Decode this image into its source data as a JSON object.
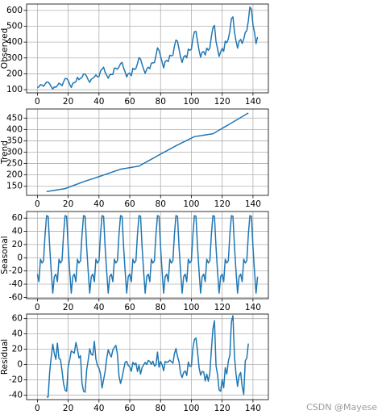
{
  "chart_data": {
    "type": "line",
    "color": "#1f77b4",
    "grid": true,
    "watermark": "CSDN @Mayese",
    "x": [
      0,
      1,
      2,
      3,
      4,
      5,
      6,
      7,
      8,
      9,
      10,
      11,
      12,
      13,
      14,
      15,
      16,
      17,
      18,
      19,
      20,
      21,
      22,
      23,
      24,
      25,
      26,
      27,
      28,
      29,
      30,
      31,
      32,
      33,
      34,
      35,
      36,
      37,
      38,
      39,
      40,
      41,
      42,
      43,
      44,
      45,
      46,
      47,
      48,
      49,
      50,
      51,
      52,
      53,
      54,
      55,
      56,
      57,
      58,
      59,
      60,
      61,
      62,
      63,
      64,
      65,
      66,
      67,
      68,
      69,
      70,
      71,
      72,
      73,
      74,
      75,
      76,
      77,
      78,
      79,
      80,
      81,
      82,
      83,
      84,
      85,
      86,
      87,
      88,
      89,
      90,
      91,
      92,
      93,
      94,
      95,
      96,
      97,
      98,
      99,
      100,
      101,
      102,
      103,
      104,
      105,
      106,
      107,
      108,
      109,
      110,
      111,
      112,
      113,
      114,
      115,
      116,
      117,
      118,
      119,
      120,
      121,
      122,
      123,
      124,
      125,
      126,
      127,
      128,
      129,
      130,
      131,
      132,
      133,
      134,
      135,
      136,
      137,
      138,
      139,
      140,
      141,
      142,
      143
    ],
    "xlim": [
      -7,
      150
    ],
    "xticks": [
      0,
      20,
      40,
      60,
      80,
      100,
      120,
      140
    ],
    "panels": [
      {
        "ylabel": "Observed",
        "ylim": [
          80,
          640
        ],
        "yticks": [
          100,
          200,
          300,
          400,
          500,
          600
        ],
        "values": [
          112,
          118,
          132,
          129,
          121,
          135,
          148,
          148,
          136,
          119,
          104,
          118,
          115,
          126,
          141,
          135,
          125,
          149,
          170,
          170,
          158,
          133,
          114,
          140,
          145,
          150,
          178,
          163,
          172,
          178,
          199,
          199,
          184,
          162,
          146,
          166,
          171,
          180,
          193,
          181,
          183,
          218,
          230,
          242,
          209,
          191,
          172,
          194,
          196,
          196,
          236,
          235,
          229,
          243,
          264,
          272,
          237,
          211,
          180,
          201,
          204,
          188,
          235,
          227,
          234,
          264,
          302,
          293,
          259,
          229,
          203,
          229,
          242,
          233,
          267,
          269,
          270,
          315,
          364,
          347,
          312,
          274,
          237,
          278,
          284,
          277,
          317,
          313,
          318,
          374,
          413,
          405,
          355,
          306,
          271,
          306,
          315,
          301,
          356,
          348,
          355,
          422,
          465,
          467,
          404,
          347,
          305,
          336,
          340,
          318,
          362,
          348,
          363,
          435,
          491,
          505,
          404,
          359,
          310,
          337,
          360,
          342,
          406,
          396,
          420,
          472,
          548,
          559,
          463,
          407,
          362,
          405,
          417,
          391,
          419,
          461,
          472,
          535,
          622,
          606,
          508,
          461,
          390,
          432
        ]
      },
      {
        "ylabel": "Trend",
        "ylim": [
          110,
          490
        ],
        "yticks": [
          150,
          200,
          250,
          300,
          350,
          400,
          450
        ],
        "values": [
          null,
          null,
          null,
          null,
          null,
          null,
          126.7,
          127.8,
          128.9,
          129.9,
          131.0,
          132.1,
          133.2,
          134.3,
          135.4,
          136.5,
          137.5,
          138.6,
          139.7,
          142.2,
          144.8,
          147.3,
          149.9,
          152.4,
          154.9,
          157.5,
          160.0,
          162.6,
          165.1,
          167.6,
          170.2,
          172.4,
          174.7,
          176.9,
          179.1,
          181.4,
          183.6,
          185.8,
          188.0,
          190.3,
          192.5,
          194.7,
          197.0,
          199.3,
          201.7,
          204.0,
          206.3,
          208.7,
          211.0,
          213.3,
          215.6,
          218.0,
          220.3,
          222.6,
          225.0,
          226.2,
          227.3,
          228.5,
          229.6,
          230.8,
          232.0,
          233.1,
          234.3,
          235.4,
          236.6,
          237.8,
          238.9,
          242.7,
          246.4,
          250.2,
          253.9,
          257.7,
          261.5,
          265.2,
          269.0,
          272.7,
          276.5,
          280.3,
          284.0,
          287.7,
          291.4,
          295.1,
          298.8,
          302.5,
          306.1,
          309.8,
          313.5,
          317.2,
          320.9,
          324.6,
          328.3,
          331.6,
          335.0,
          338.3,
          341.7,
          345.0,
          348.3,
          351.7,
          355.0,
          358.4,
          361.7,
          365.1,
          368.4,
          369.5,
          370.5,
          371.6,
          372.6,
          373.7,
          374.7,
          375.8,
          376.8,
          377.9,
          378.9,
          380.0,
          381.0,
          384.9,
          388.9,
          392.8,
          396.8,
          400.7,
          404.6,
          408.6,
          412.5,
          416.5,
          420.4,
          424.3,
          428.3,
          432.3,
          436.3,
          440.3,
          444.3,
          448.3,
          452.2,
          456.2,
          460.2,
          464.2,
          468.2,
          472.2,
          null,
          null,
          null,
          null,
          null,
          null
        ]
      },
      {
        "ylabel": "Seasonal",
        "ylim": [
          -62,
          70
        ],
        "yticks": [
          -60,
          -40,
          -20,
          0,
          20,
          40,
          60
        ],
        "values": [
          -24.8,
          -36.2,
          -2.2,
          -8.0,
          -4.5,
          35.4,
          63.8,
          62.8,
          16.5,
          -20.6,
          -53.6,
          -28.6,
          -24.8,
          -36.2,
          -2.2,
          -8.0,
          -4.5,
          35.4,
          63.8,
          62.8,
          16.5,
          -20.6,
          -53.6,
          -28.6,
          -24.8,
          -36.2,
          -2.2,
          -8.0,
          -4.5,
          35.4,
          63.8,
          62.8,
          16.5,
          -20.6,
          -53.6,
          -28.6,
          -24.8,
          -36.2,
          -2.2,
          -8.0,
          -4.5,
          35.4,
          63.8,
          62.8,
          16.5,
          -20.6,
          -53.6,
          -28.6,
          -24.8,
          -36.2,
          -2.2,
          -8.0,
          -4.5,
          35.4,
          63.8,
          62.8,
          16.5,
          -20.6,
          -53.6,
          -28.6,
          -24.8,
          -36.2,
          -2.2,
          -8.0,
          -4.5,
          35.4,
          63.8,
          62.8,
          16.5,
          -20.6,
          -53.6,
          -28.6,
          -24.8,
          -36.2,
          -2.2,
          -8.0,
          -4.5,
          35.4,
          63.8,
          62.8,
          16.5,
          -20.6,
          -53.6,
          -28.6,
          -24.8,
          -36.2,
          -2.2,
          -8.0,
          -4.5,
          35.4,
          63.8,
          62.8,
          16.5,
          -20.6,
          -53.6,
          -28.6,
          -24.8,
          -36.2,
          -2.2,
          -8.0,
          -4.5,
          35.4,
          63.8,
          62.8,
          16.5,
          -20.6,
          -53.6,
          -28.6,
          -24.8,
          -36.2,
          -2.2,
          -8.0,
          -4.5,
          35.4,
          63.8,
          62.8,
          16.5,
          -20.6,
          -53.6,
          -28.6,
          -24.8,
          -36.2,
          -2.2,
          -8.0,
          -4.5,
          35.4,
          63.8,
          62.8,
          16.5,
          -20.6,
          -53.6,
          -28.6,
          -24.8,
          -36.2,
          -2.2,
          -8.0,
          -4.5,
          35.4,
          63.8,
          62.8,
          16.5,
          -20.6,
          -53.6,
          -28.6
        ]
      },
      {
        "ylabel": "Residual",
        "ylim": [
          -46,
          66
        ],
        "yticks": [
          -40,
          -20,
          0,
          20,
          40,
          60
        ],
        "values": [
          null,
          null,
          null,
          null,
          null,
          null,
          -42.5,
          -42.6,
          -9.4,
          9.7,
          26.6,
          14.5,
          6.6,
          27.9,
          7.8,
          6.5,
          -8.0,
          -25.0,
          -33.5,
          -35.0,
          -3.3,
          6.3,
          17.7,
          16.2,
          14.9,
          28.7,
          20.2,
          8.4,
          11.4,
          -25.0,
          -35.0,
          -36.2,
          -7.2,
          5.7,
          20.5,
          13.2,
          12.2,
          30.4,
          7.2,
          -1.3,
          -5.0,
          -12.1,
          -30.8,
          -20.1,
          -9.2,
          7.6,
          19.3,
          13.9,
          9.8,
          18.9,
          22.6,
          25.0,
          13.2,
          -15.0,
          -24.8,
          -17.0,
          -6.8,
          3.1,
          4.0,
          -1.2,
          -3.2,
          -8.9,
          2.9,
          -0.4,
          1.9,
          -9.2,
          -0.7,
          -12.5,
          -3.9,
          -0.6,
          2.7,
          -0.1,
          5.3,
          4.0,
          0.2,
          4.3,
          -2.0,
          -0.7,
          16.2,
          -3.5,
          4.1,
          -0.5,
          -8.2,
          4.1,
          2.7,
          3.4,
          5.7,
          3.8,
          1.6,
          14.0,
          20.9,
          10.6,
          3.5,
          -11.7,
          -17.1,
          -10.4,
          -8.5,
          -14.5,
          3.2,
          -2.4,
          -2.2,
          21.5,
          32.8,
          34.7,
          17.0,
          -4.0,
          -14.0,
          -9.1,
          -9.9,
          -21.6,
          -12.6,
          -21.9,
          -11.4,
          19.6,
          46.2,
          57.3,
          -1.4,
          -13.2,
          -33.2,
          -35.1,
          -19.8,
          -30.4,
          -4.3,
          -12.5,
          4.1,
          12.3,
          55.9,
          63.9,
          10.2,
          -12.7,
          -28.7,
          -14.7,
          -10.4,
          -29.0,
          -39.0,
          4.8,
          8.3,
          27.4,
          null,
          null,
          null,
          null,
          null,
          null
        ]
      }
    ]
  }
}
